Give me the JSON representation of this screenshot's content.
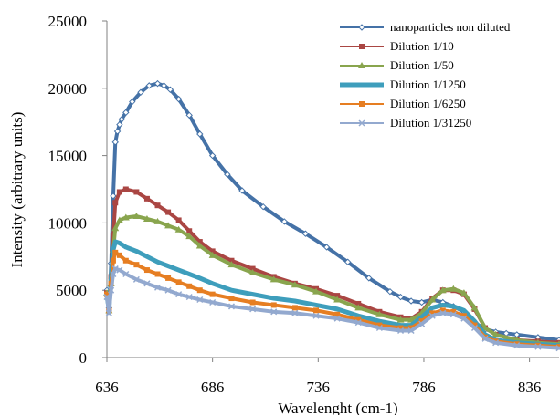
{
  "chart_data": {
    "type": "line",
    "xlabel": "Wavelenght (cm-1)",
    "ylabel": "Intensity (arbitrary units)",
    "xlim": [
      636,
      850
    ],
    "ylim": [
      0,
      25000
    ],
    "x_ticks": [
      636,
      686,
      736,
      786,
      836
    ],
    "y_ticks": [
      0,
      5000,
      10000,
      15000,
      20000,
      25000
    ],
    "grid": false,
    "legend_position": "top-right",
    "series": [
      {
        "name": "nanoparticles non diluted",
        "color": "#4572A7",
        "marker": "diamond",
        "x": [
          636,
          637,
          638,
          639,
          640,
          641,
          642,
          643,
          645,
          648,
          652,
          656,
          660,
          663,
          666,
          670,
          675,
          680,
          686,
          693,
          700,
          710,
          720,
          730,
          740,
          750,
          760,
          770,
          775,
          780,
          785,
          790,
          795,
          800,
          805,
          810,
          815,
          820,
          825,
          830,
          840,
          850
        ],
        "y": [
          5000,
          3700,
          7000,
          12000,
          16000,
          16800,
          17300,
          17700,
          18200,
          19000,
          19700,
          20200,
          20350,
          20200,
          19900,
          19200,
          18000,
          16600,
          15000,
          13600,
          12400,
          11200,
          10100,
          9200,
          8200,
          7100,
          5900,
          4900,
          4500,
          4200,
          4100,
          4300,
          4100,
          3800,
          3400,
          2600,
          2100,
          1900,
          1800,
          1700,
          1500,
          1300
        ]
      },
      {
        "name": "Dilution 1/10",
        "color": "#AA4643",
        "marker": "square",
        "x": [
          636,
          637,
          638,
          639,
          640,
          642,
          645,
          650,
          655,
          660,
          665,
          670,
          675,
          680,
          686,
          695,
          705,
          715,
          725,
          735,
          745,
          755,
          765,
          775,
          780,
          785,
          790,
          795,
          800,
          805,
          810,
          815,
          820,
          830,
          840,
          850
        ],
        "y": [
          4800,
          3500,
          6000,
          9000,
          11500,
          12300,
          12500,
          12300,
          11800,
          11300,
          10800,
          10200,
          9400,
          8600,
          7900,
          7200,
          6600,
          6000,
          5500,
          5100,
          4600,
          4000,
          3400,
          3000,
          2900,
          3400,
          4400,
          5000,
          5000,
          4700,
          3600,
          2200,
          1700,
          1300,
          1200,
          1100
        ]
      },
      {
        "name": "Dilution 1/50",
        "color": "#89A54E",
        "marker": "triangle",
        "x": [
          636,
          637,
          638,
          639,
          640,
          642,
          645,
          650,
          655,
          660,
          665,
          670,
          675,
          680,
          686,
          695,
          705,
          715,
          725,
          735,
          745,
          755,
          765,
          775,
          780,
          785,
          790,
          795,
          800,
          805,
          810,
          815,
          820,
          830,
          840,
          850
        ],
        "y": [
          4800,
          3500,
          5500,
          8000,
          9600,
          10200,
          10400,
          10500,
          10300,
          10100,
          9800,
          9500,
          9000,
          8300,
          7600,
          6900,
          6300,
          5800,
          5400,
          4900,
          4300,
          3700,
          3200,
          2800,
          2800,
          3300,
          4300,
          5000,
          5100,
          4800,
          3700,
          2200,
          1700,
          1300,
          1100,
          1000
        ]
      },
      {
        "name": "Dilution 1/1250",
        "color": "#3E9EBC",
        "marker": "none",
        "x": [
          636,
          637,
          638,
          639,
          640,
          642,
          645,
          650,
          655,
          660,
          665,
          670,
          675,
          680,
          686,
          695,
          705,
          715,
          725,
          735,
          745,
          755,
          765,
          775,
          780,
          785,
          790,
          795,
          800,
          805,
          810,
          815,
          820,
          830,
          840,
          850
        ],
        "y": [
          4600,
          3600,
          6000,
          8000,
          8600,
          8500,
          8200,
          7900,
          7500,
          7100,
          6800,
          6500,
          6200,
          5900,
          5500,
          5000,
          4700,
          4400,
          4200,
          3900,
          3600,
          3100,
          2700,
          2400,
          2400,
          3000,
          3700,
          3900,
          3800,
          3500,
          2700,
          1700,
          1300,
          1100,
          1000,
          900
        ]
      },
      {
        "name": "Dilution 1/6250",
        "color": "#E67E22",
        "marker": "square",
        "x": [
          636,
          637,
          638,
          639,
          640,
          642,
          645,
          650,
          655,
          660,
          665,
          670,
          675,
          680,
          686,
          695,
          705,
          715,
          725,
          735,
          745,
          755,
          765,
          775,
          780,
          785,
          790,
          795,
          800,
          805,
          810,
          815,
          820,
          830,
          840,
          850
        ],
        "y": [
          4700,
          3500,
          5500,
          7200,
          7800,
          7600,
          7200,
          6900,
          6500,
          6200,
          5900,
          5600,
          5300,
          5000,
          4700,
          4400,
          4100,
          3900,
          3700,
          3500,
          3200,
          2800,
          2400,
          2200,
          2200,
          2700,
          3300,
          3500,
          3400,
          3100,
          2400,
          1500,
          1200,
          1000,
          900,
          800
        ]
      },
      {
        "name": "Dilution 1/31250",
        "color": "#93A9CF",
        "marker": "x",
        "x": [
          636,
          637,
          638,
          639,
          640,
          642,
          645,
          650,
          655,
          660,
          665,
          670,
          675,
          680,
          686,
          695,
          705,
          715,
          725,
          735,
          745,
          755,
          765,
          775,
          780,
          785,
          790,
          795,
          800,
          805,
          810,
          815,
          820,
          830,
          840,
          850
        ],
        "y": [
          4500,
          3300,
          5000,
          6200,
          6600,
          6500,
          6200,
          5800,
          5500,
          5200,
          5000,
          4700,
          4500,
          4300,
          4100,
          3800,
          3600,
          3400,
          3300,
          3100,
          2900,
          2600,
          2200,
          2000,
          2000,
          2500,
          3100,
          3300,
          3200,
          2900,
          2200,
          1400,
          1100,
          900,
          800,
          700
        ]
      }
    ]
  }
}
